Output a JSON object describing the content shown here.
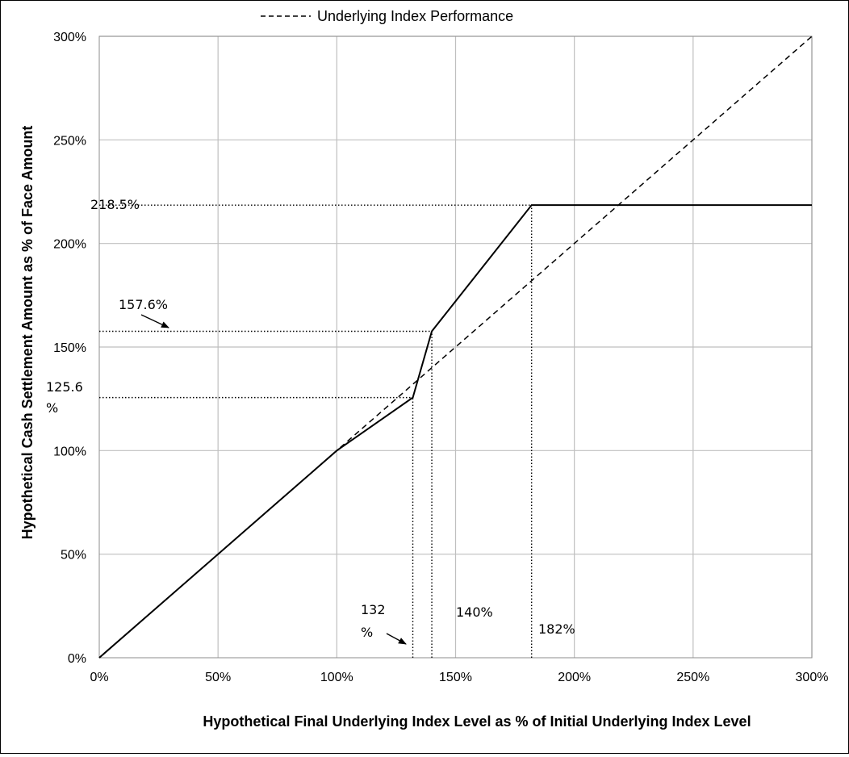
{
  "chart_data": {
    "type": "line",
    "xlabel": "Hypothetical Final Underlying Index Level as % of Initial Underlying Index Level",
    "ylabel": "Hypothetical Cash Settlement Amount as % of Face Amount",
    "xlim": [
      0,
      300
    ],
    "ylim": [
      0,
      300
    ],
    "grid": true,
    "legend_position": "top",
    "x_ticks": [
      {
        "value": 0,
        "label": "0%"
      },
      {
        "value": 50,
        "label": "50%"
      },
      {
        "value": 100,
        "label": "100%"
      },
      {
        "value": 150,
        "label": "150%"
      },
      {
        "value": 200,
        "label": "200%"
      },
      {
        "value": 250,
        "label": "250%"
      },
      {
        "value": 300,
        "label": "300%"
      }
    ],
    "y_ticks": [
      {
        "value": 0,
        "label": "0%"
      },
      {
        "value": 50,
        "label": "50%"
      },
      {
        "value": 100,
        "label": "100%"
      },
      {
        "value": 150,
        "label": "150%"
      },
      {
        "value": 200,
        "label": "200%"
      },
      {
        "value": 250,
        "label": "250%"
      },
      {
        "value": 300,
        "label": "300%"
      }
    ],
    "series": [
      {
        "name": "",
        "style": "solid",
        "color": "#000000",
        "x": [
          0,
          100,
          132,
          140,
          182,
          300
        ],
        "y": [
          0,
          100,
          125.6,
          157.6,
          218.5,
          218.5
        ]
      },
      {
        "name": "Underlying Index Performance",
        "style": "dashed",
        "color": "#000000",
        "x": [
          0,
          300
        ],
        "y": [
          0,
          300
        ]
      }
    ],
    "reference_lines": [
      {
        "orientation": "horizontal",
        "y": 218.5,
        "x_from": 0,
        "x_to": 182
      },
      {
        "orientation": "horizontal",
        "y": 157.6,
        "x_from": 0,
        "x_to": 140
      },
      {
        "orientation": "horizontal",
        "y": 125.6,
        "x_from": 0,
        "x_to": 132
      },
      {
        "orientation": "vertical",
        "x": 132,
        "y_from": 0,
        "y_to": 125.6
      },
      {
        "orientation": "vertical",
        "x": 140,
        "y_from": 0,
        "y_to": 157.6
      },
      {
        "orientation": "vertical",
        "x": 182,
        "y_from": 0,
        "y_to": 218.5
      }
    ],
    "annotations": [
      {
        "text": "218.5%",
        "value": 218.5
      },
      {
        "text": "157.6%",
        "value": 157.6
      },
      {
        "text": "125.6",
        "text2": "%",
        "value": 125.6
      },
      {
        "text": "132",
        "text2": "%",
        "value": 132
      },
      {
        "text": "140%",
        "value": 140
      },
      {
        "text": "182%",
        "value": 182
      }
    ]
  }
}
